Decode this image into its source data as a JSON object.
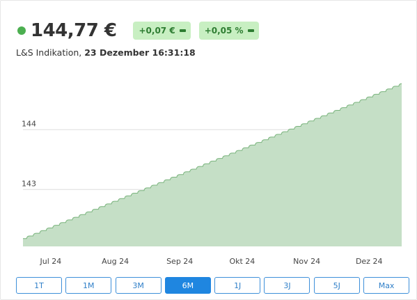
{
  "quote": {
    "price": "144,77 €",
    "change_abs": "+0,07 €",
    "change_pct": "+0,05 %",
    "source_label": "L&S Indikation,",
    "timestamp": "23 Dezember 16:31:18"
  },
  "colors": {
    "status_dot": "#4caf50",
    "badge_bg": "#c8efc2",
    "badge_text": "#2e7d32",
    "area_fill": "#c5dfc6",
    "area_line": "#7ab47d",
    "gridline": "#dddddd",
    "button_border": "#3d8fd9",
    "button_active_bg": "#1f86e0"
  },
  "range_buttons": [
    {
      "label": "1T",
      "active": false
    },
    {
      "label": "1M",
      "active": false
    },
    {
      "label": "3M",
      "active": false
    },
    {
      "label": "6M",
      "active": true
    },
    {
      "label": "1J",
      "active": false
    },
    {
      "label": "3J",
      "active": false
    },
    {
      "label": "5J",
      "active": false
    },
    {
      "label": "Max",
      "active": false
    }
  ],
  "chart_data": {
    "type": "area",
    "title": "",
    "xlabel": "",
    "ylabel": "",
    "x_tick_labels": [
      "Jul 24",
      "Aug 24",
      "Sep 24",
      "Okt 24",
      "Nov 24",
      "Dez 24"
    ],
    "y_tick_labels": [
      "144",
      "143"
    ],
    "y_ticks": [
      144,
      143
    ],
    "ylim": [
      142.05,
      145.05
    ],
    "grid": true,
    "legend": "none",
    "series": [
      {
        "x": [
          "2024-06-24",
          "2024-12-23"
        ],
        "start_value": 142.18,
        "end_value": 144.77,
        "pattern": "stepwise daily accrual (small rounded steps)"
      }
    ]
  }
}
